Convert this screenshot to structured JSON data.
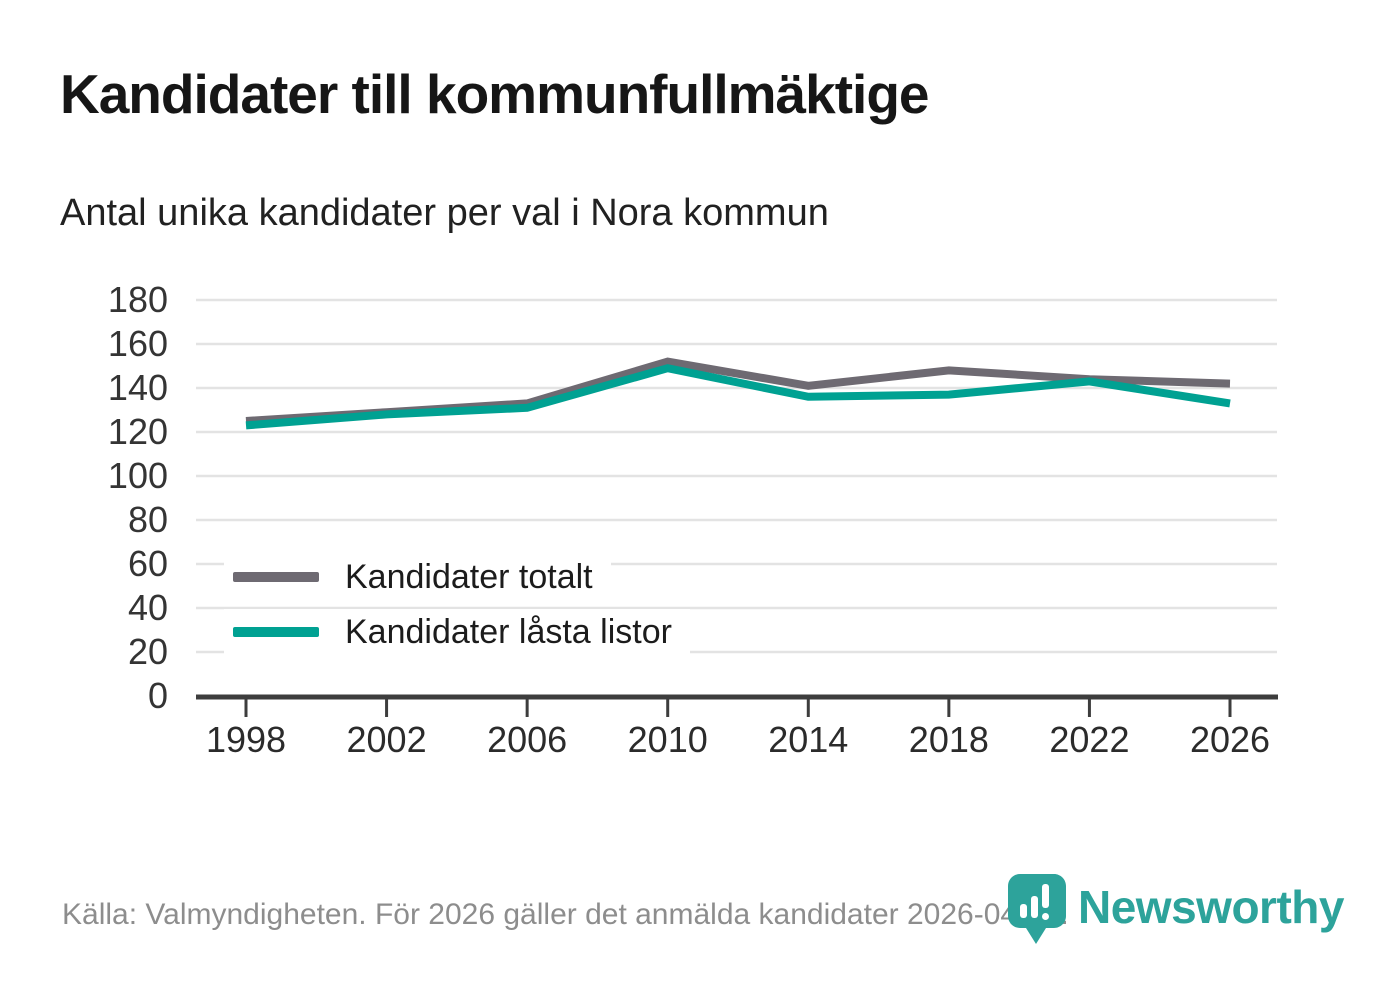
{
  "header": {
    "title": "Kandidater till kommunfullmäktige",
    "subtitle": "Antal unika kandidater per val i Nora kommun"
  },
  "chart_data": {
    "type": "line",
    "title": "Kandidater till kommunfullmäktige",
    "subtitle": "Antal unika kandidater per val i Nora kommun",
    "categories": [
      "1998",
      "2002",
      "2006",
      "2010",
      "2014",
      "2018",
      "2022",
      "2026"
    ],
    "series": [
      {
        "name": "Kandidater totalt",
        "color": "#6e6a72",
        "values": [
          125,
          129,
          133,
          152,
          141,
          148,
          144,
          142
        ]
      },
      {
        "name": "Kandidater låsta listor",
        "color": "#00a192",
        "values": [
          123,
          128,
          131,
          149,
          136,
          137,
          143,
          133
        ]
      }
    ],
    "ylim": [
      0,
      180
    ],
    "yticks": [
      0,
      20,
      40,
      60,
      80,
      100,
      120,
      140,
      160,
      180
    ],
    "grid": true,
    "legend_position": "inside-bottom-left"
  },
  "footer": {
    "source": "Källa: Valmyndigheten. För 2026 gäller det anmälda kandidater 2026-04-10."
  },
  "branding": {
    "name": "Newsworthy",
    "color": "#2da39b"
  }
}
